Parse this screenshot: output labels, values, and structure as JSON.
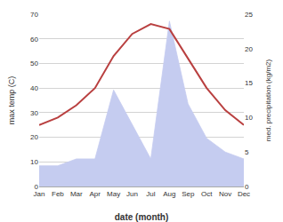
{
  "chart_data": {
    "type": "line",
    "xlabel": "date (month)",
    "ylabel": "max temp (C)",
    "y2label": "med. precipitation (kg/m2)",
    "categories": [
      "Jan",
      "Feb",
      "Mar",
      "Apr",
      "May",
      "Jun",
      "Jul",
      "Aug",
      "Sep",
      "Oct",
      "Nov",
      "Dec"
    ],
    "series": [
      {
        "type": "area",
        "axis": "y2",
        "color": "#c5ccf0",
        "values": [
          3,
          3,
          4,
          4,
          14,
          9,
          4,
          24,
          12,
          7,
          5,
          4
        ]
      },
      {
        "type": "line",
        "color": "#b94040",
        "values": [
          25,
          28,
          33,
          40,
          53,
          62,
          66,
          64,
          52,
          40,
          31,
          25
        ]
      }
    ],
    "ylim": [
      0,
      70
    ],
    "yticks": [
      0,
      10,
      20,
      30,
      40,
      50,
      60,
      70
    ],
    "y2lim": [
      0,
      25
    ],
    "y2ticks": [
      0,
      5,
      10,
      15,
      20,
      25
    ],
    "grid": true
  }
}
